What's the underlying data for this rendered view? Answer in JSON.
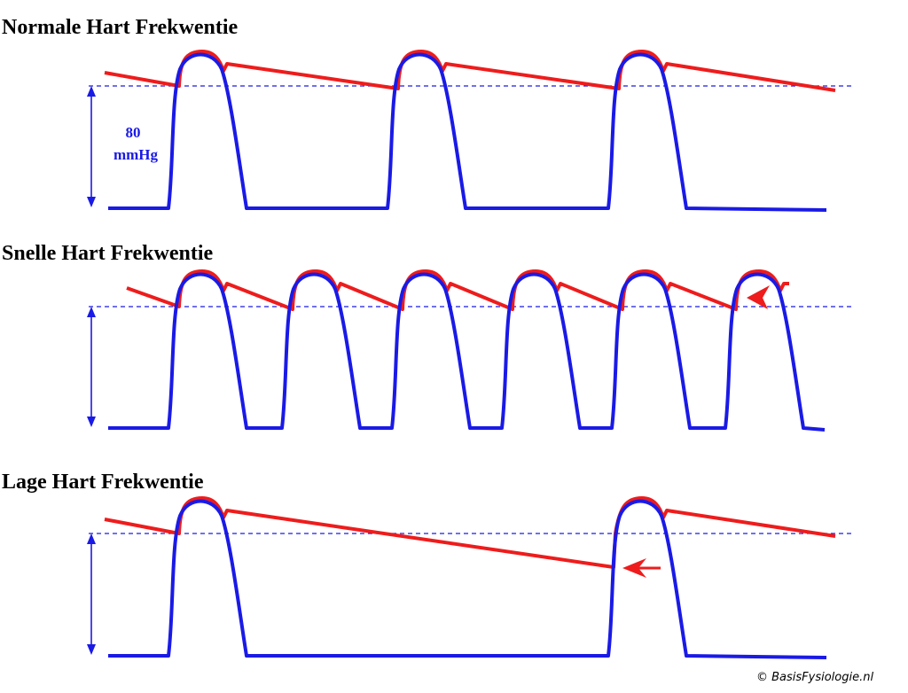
{
  "panels": [
    {
      "title": "Normale Hart Frekwentie"
    },
    {
      "title": "Snelle Hart Frekwentie"
    },
    {
      "title": "Lage Hart Frekwentie"
    }
  ],
  "pressure_label": {
    "value": "80",
    "unit": "mmHg"
  },
  "copyright": "© BasisFysiologie.nl"
}
